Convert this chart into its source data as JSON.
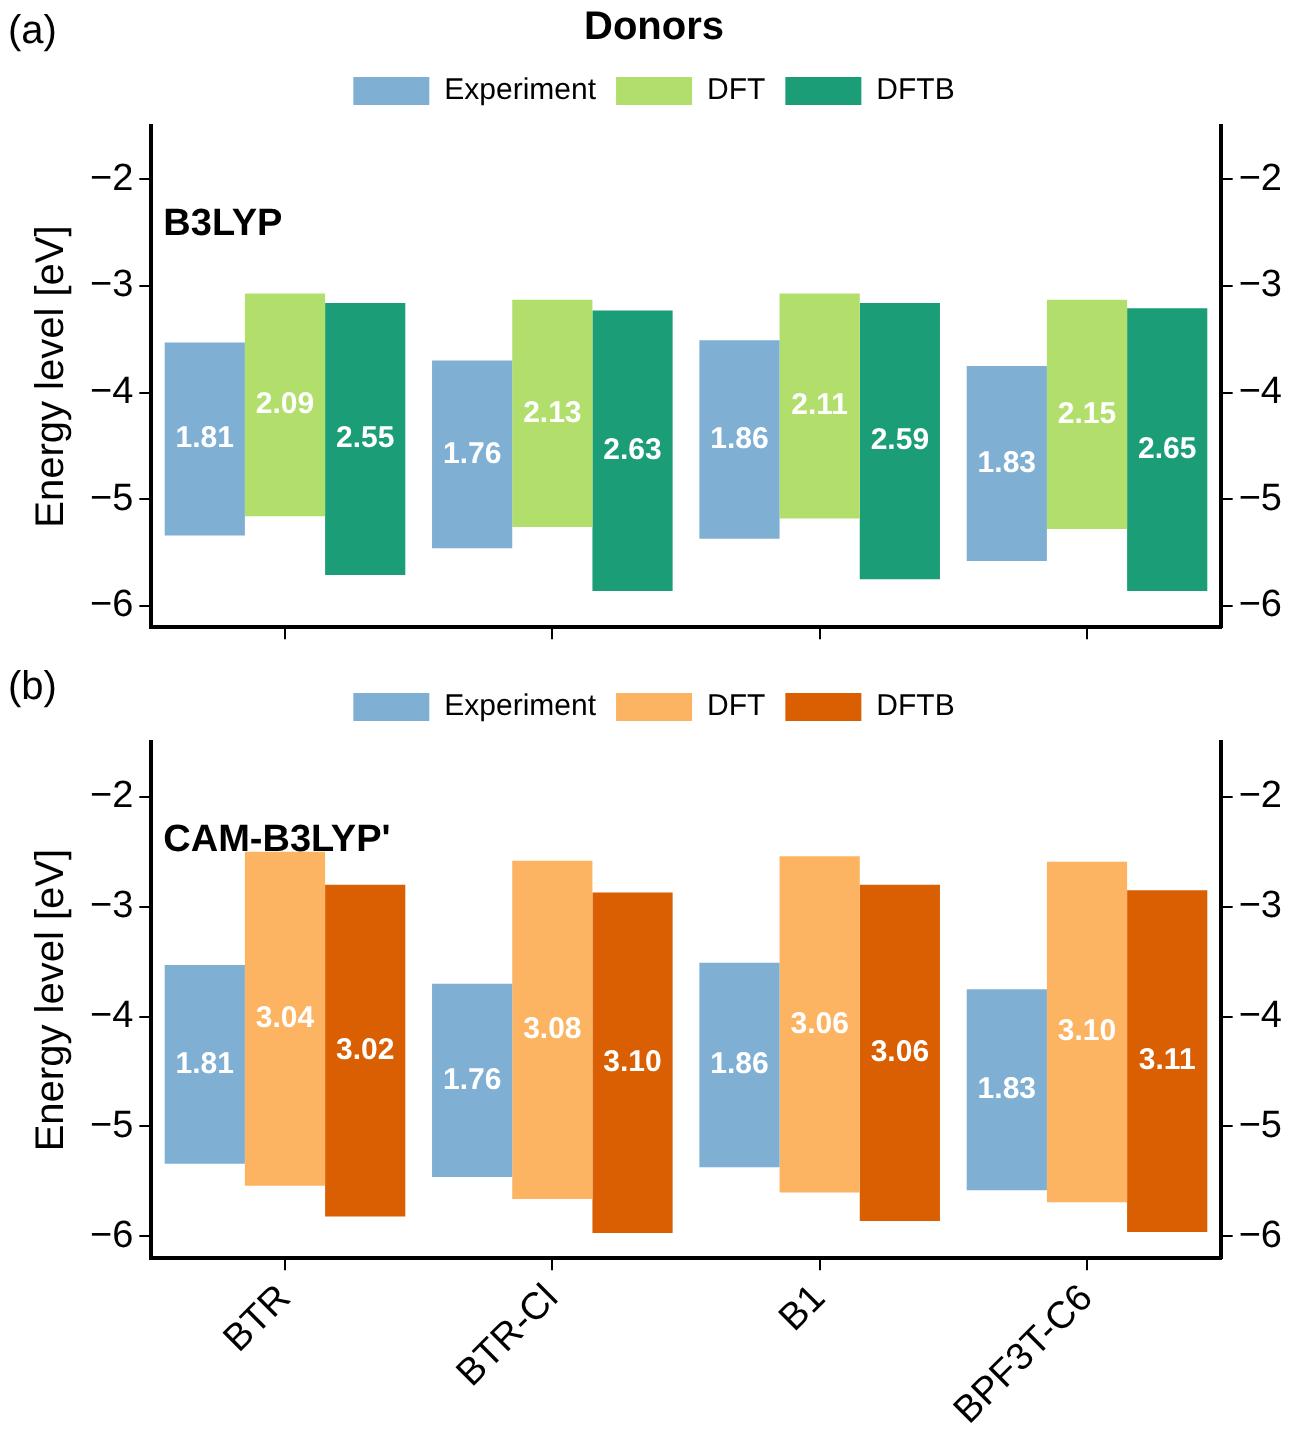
{
  "chart_data": [
    {
      "type": "bar",
      "title": "Donors",
      "ylabel": "Energy level [eV]",
      "annotations": [
        "(a)",
        "B3LYP"
      ],
      "categories": [
        null,
        null,
        null,
        null
      ],
      "series": [
        {
          "name": "Experiment",
          "color": "#7fb0d4",
          "values": [
            1.81,
            1.76,
            1.86,
            1.83
          ],
          "base": [
            -5.34,
            -5.46,
            -5.37,
            -5.58
          ],
          "value_labels": [
            "1.81",
            "1.76",
            "1.86",
            "1.83"
          ]
        },
        {
          "name": "DFT",
          "color": "#b2df6c",
          "values": [
            2.09,
            2.13,
            2.11,
            2.15
          ],
          "base": [
            -5.16,
            -5.26,
            -5.18,
            -5.28
          ],
          "value_labels": [
            "2.09",
            "2.13",
            "2.11",
            "2.15"
          ]
        },
        {
          "name": "DFTB",
          "color": "#1b9e77",
          "values": [
            2.55,
            2.63,
            2.59,
            2.65
          ],
          "base": [
            -5.71,
            -5.86,
            -5.75,
            -5.86
          ],
          "value_labels": [
            "2.55",
            "2.63",
            "2.59",
            "2.65"
          ]
        }
      ],
      "ylim": [
        -6.2,
        -1.5
      ],
      "yticks": [
        -6,
        -5,
        -4,
        -3,
        -2
      ],
      "y2lim": [
        -6.2,
        -1.5
      ],
      "y2ticks": [
        -6,
        -5,
        -4,
        -3,
        -2
      ],
      "legend": "top",
      "grid": false,
      "tick_labels": "y"
    },
    {
      "type": "bar",
      "ylabel": "Energy level [eV]",
      "annotations": [
        "(b)",
        "CAM-B3LYP'"
      ],
      "categories": [
        "BTR",
        "BTR-Cl",
        "B1",
        "BPF3T-C6"
      ],
      "series": [
        {
          "name": "Experiment",
          "color": "#7fb0d4",
          "values": [
            1.81,
            1.76,
            1.86,
            1.83
          ],
          "base": [
            -5.34,
            -5.46,
            -5.37,
            -5.58
          ],
          "value_labels": [
            "1.81",
            "1.76",
            "1.86",
            "1.83"
          ]
        },
        {
          "name": "DFT",
          "color": "#fdb462",
          "values": [
            3.04,
            3.08,
            3.06,
            3.1
          ],
          "base": [
            -5.54,
            -5.66,
            -5.6,
            -5.69
          ],
          "value_labels": [
            "3.04",
            "3.08",
            "3.06",
            "3.10"
          ]
        },
        {
          "name": "DFTB",
          "color": "#d95f02",
          "values": [
            3.02,
            3.1,
            3.06,
            3.11
          ],
          "base": [
            -5.82,
            -5.97,
            -5.86,
            -5.96
          ],
          "value_labels": [
            "3.02",
            "3.10",
            "3.06",
            "3.11"
          ]
        }
      ],
      "ylim": [
        -6.2,
        -1.5
      ],
      "yticks": [
        -6,
        -5,
        -4,
        -3,
        -2
      ],
      "y2lim": [
        -6.2,
        -1.5
      ],
      "y2ticks": [
        -6,
        -5,
        -4,
        -3,
        -2
      ],
      "legend": "top",
      "grid": false
    }
  ]
}
